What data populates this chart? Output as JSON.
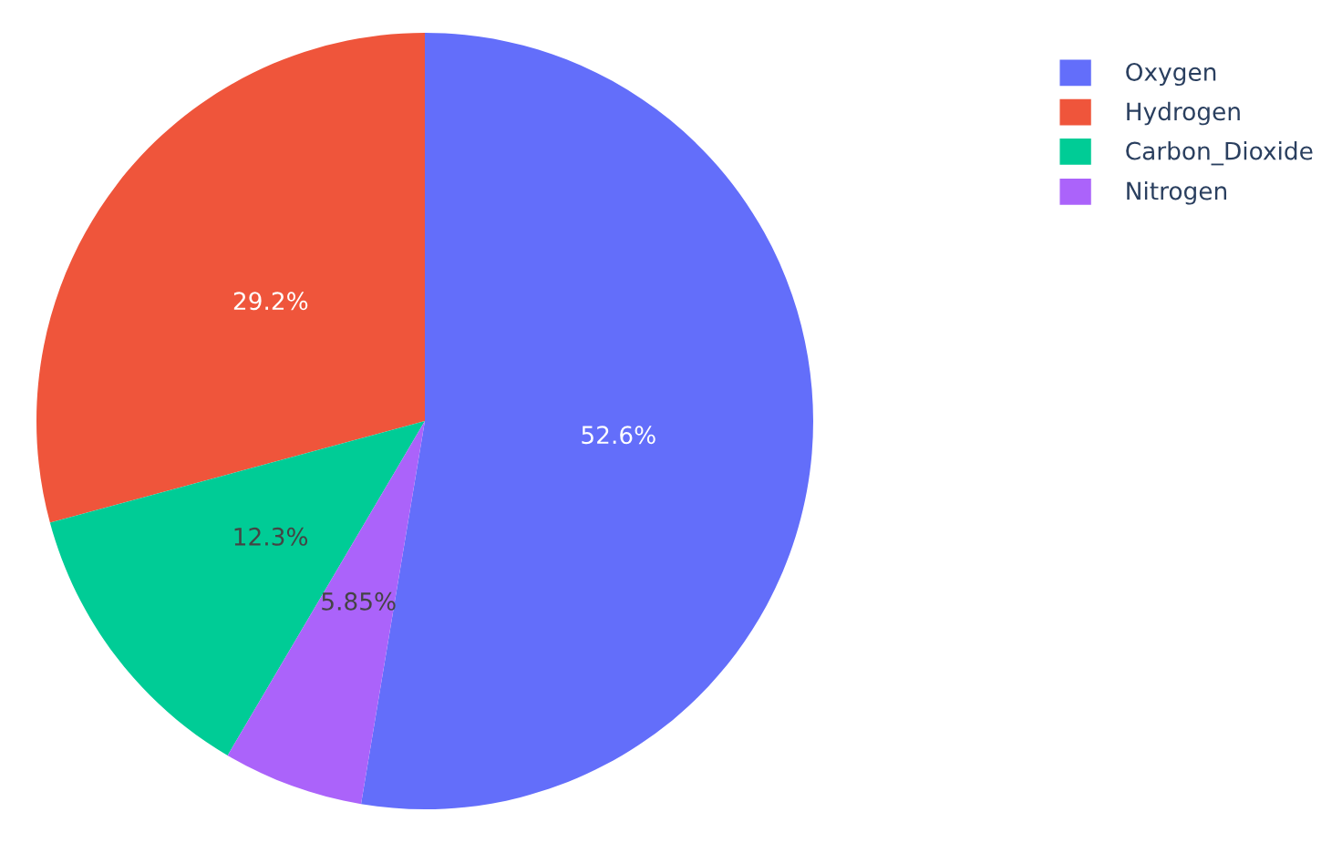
{
  "chart_data": {
    "type": "pie",
    "categories": [
      "Oxygen",
      "Hydrogen",
      "Carbon_Dioxide",
      "Nitrogen"
    ],
    "values": [
      52.6,
      29.2,
      12.3,
      5.85
    ],
    "colors": [
      "#636efa",
      "#ef553b",
      "#00cc96",
      "#ab63fa"
    ],
    "value_labels": [
      "52.6%",
      "29.2%",
      "12.3%",
      "5.85%"
    ],
    "legend": "top right"
  }
}
